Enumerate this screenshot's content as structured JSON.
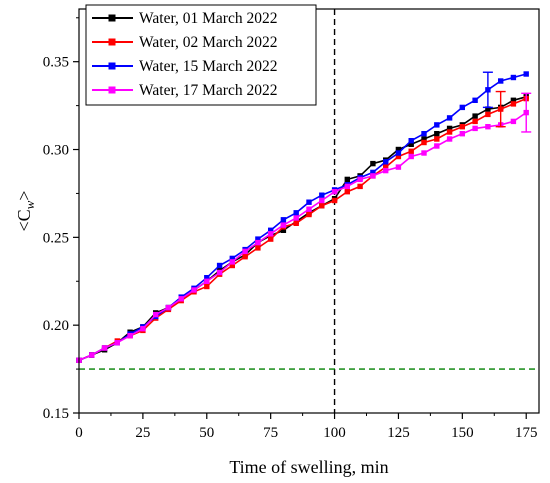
{
  "chart_data": {
    "type": "line",
    "xlabel": "Time of swelling, min",
    "ylabel_main": "<C",
    "ylabel_sub": "w",
    "ylabel_end": ">",
    "xlim": [
      0,
      180
    ],
    "ylim": [
      0.15,
      0.38
    ],
    "xticks": [
      0,
      25,
      50,
      75,
      100,
      125,
      150,
      175
    ],
    "xtick_labels": [
      "0",
      "25",
      "50",
      "75",
      "100",
      "125",
      "150",
      "175"
    ],
    "yticks": [
      0.15,
      0.2,
      0.25,
      0.3,
      0.35
    ],
    "ytick_labels": [
      "0.15",
      "0.20",
      "0.25",
      "0.30",
      "0.35"
    ],
    "grid": false,
    "legend_position": "top-left",
    "series": [
      {
        "name": "Water, 01 March 2022",
        "color": "#000000",
        "x": [
          0,
          5,
          10,
          15,
          20,
          25,
          30,
          35,
          40,
          45,
          50,
          55,
          60,
          65,
          70,
          75,
          80,
          85,
          90,
          95,
          100,
          105,
          110,
          115,
          120,
          125,
          130,
          135,
          140,
          145,
          150,
          155,
          160,
          165,
          170,
          175
        ],
        "y": [
          0.18,
          0.183,
          0.186,
          0.19,
          0.196,
          0.199,
          0.207,
          0.21,
          0.215,
          0.22,
          0.225,
          0.231,
          0.236,
          0.24,
          0.247,
          0.251,
          0.254,
          0.259,
          0.264,
          0.268,
          0.272,
          0.283,
          0.285,
          0.292,
          0.294,
          0.3,
          0.303,
          0.306,
          0.309,
          0.312,
          0.314,
          0.319,
          0.323,
          0.324,
          0.328,
          0.33
        ]
      },
      {
        "name": "Water, 02 March 2022",
        "color": "#ff0000",
        "x": [
          0,
          5,
          10,
          15,
          20,
          25,
          30,
          35,
          40,
          45,
          50,
          55,
          60,
          65,
          70,
          75,
          80,
          85,
          90,
          95,
          100,
          105,
          110,
          115,
          120,
          125,
          130,
          135,
          140,
          145,
          150,
          155,
          160,
          165,
          170,
          175
        ],
        "y": [
          0.18,
          0.183,
          0.187,
          0.191,
          0.194,
          0.197,
          0.204,
          0.209,
          0.214,
          0.219,
          0.222,
          0.229,
          0.234,
          0.239,
          0.244,
          0.249,
          0.256,
          0.258,
          0.263,
          0.268,
          0.271,
          0.276,
          0.279,
          0.285,
          0.29,
          0.296,
          0.299,
          0.304,
          0.306,
          0.31,
          0.313,
          0.316,
          0.32,
          0.323,
          0.326,
          0.329
        ]
      },
      {
        "name": "Water, 15 March 2022",
        "color": "#0000ff",
        "x": [
          0,
          5,
          10,
          15,
          20,
          25,
          30,
          35,
          40,
          45,
          50,
          55,
          60,
          65,
          70,
          75,
          80,
          85,
          90,
          95,
          100,
          105,
          110,
          115,
          120,
          125,
          130,
          135,
          140,
          145,
          150,
          155,
          160,
          165,
          170,
          175
        ],
        "y": [
          0.18,
          0.183,
          0.187,
          0.19,
          0.195,
          0.199,
          0.205,
          0.21,
          0.216,
          0.221,
          0.227,
          0.234,
          0.238,
          0.243,
          0.249,
          0.254,
          0.26,
          0.264,
          0.27,
          0.274,
          0.277,
          0.28,
          0.284,
          0.287,
          0.293,
          0.298,
          0.305,
          0.309,
          0.314,
          0.318,
          0.324,
          0.328,
          0.334,
          0.339,
          0.341,
          0.343
        ]
      },
      {
        "name": "Water, 17 March 2022",
        "color": "#ff00ff",
        "x": [
          0,
          5,
          10,
          15,
          20,
          25,
          30,
          35,
          40,
          45,
          50,
          55,
          60,
          65,
          70,
          75,
          80,
          85,
          90,
          95,
          100,
          105,
          110,
          115,
          120,
          125,
          130,
          135,
          140,
          145,
          150,
          155,
          160,
          165,
          170,
          175
        ],
        "y": [
          0.18,
          0.183,
          0.187,
          0.19,
          0.194,
          0.198,
          0.206,
          0.21,
          0.215,
          0.22,
          0.225,
          0.23,
          0.236,
          0.242,
          0.247,
          0.252,
          0.257,
          0.261,
          0.266,
          0.271,
          0.276,
          0.279,
          0.283,
          0.285,
          0.288,
          0.29,
          0.296,
          0.298,
          0.302,
          0.306,
          0.309,
          0.312,
          0.313,
          0.314,
          0.316,
          0.321
        ]
      }
    ],
    "error_bars": [
      {
        "color": "#0000ff",
        "x": 160,
        "y": 0.334,
        "err": 0.01
      },
      {
        "color": "#ff0000",
        "x": 165,
        "y": 0.323,
        "err": 0.01
      },
      {
        "color": "#ff00ff",
        "x": 175,
        "y": 0.321,
        "err": 0.011
      }
    ],
    "reference_lines": [
      {
        "orientation": "vertical",
        "value": 100,
        "color": "#000000",
        "style": "dashed"
      },
      {
        "orientation": "horizontal",
        "value": 0.175,
        "color": "#008000",
        "style": "dashed"
      }
    ]
  }
}
